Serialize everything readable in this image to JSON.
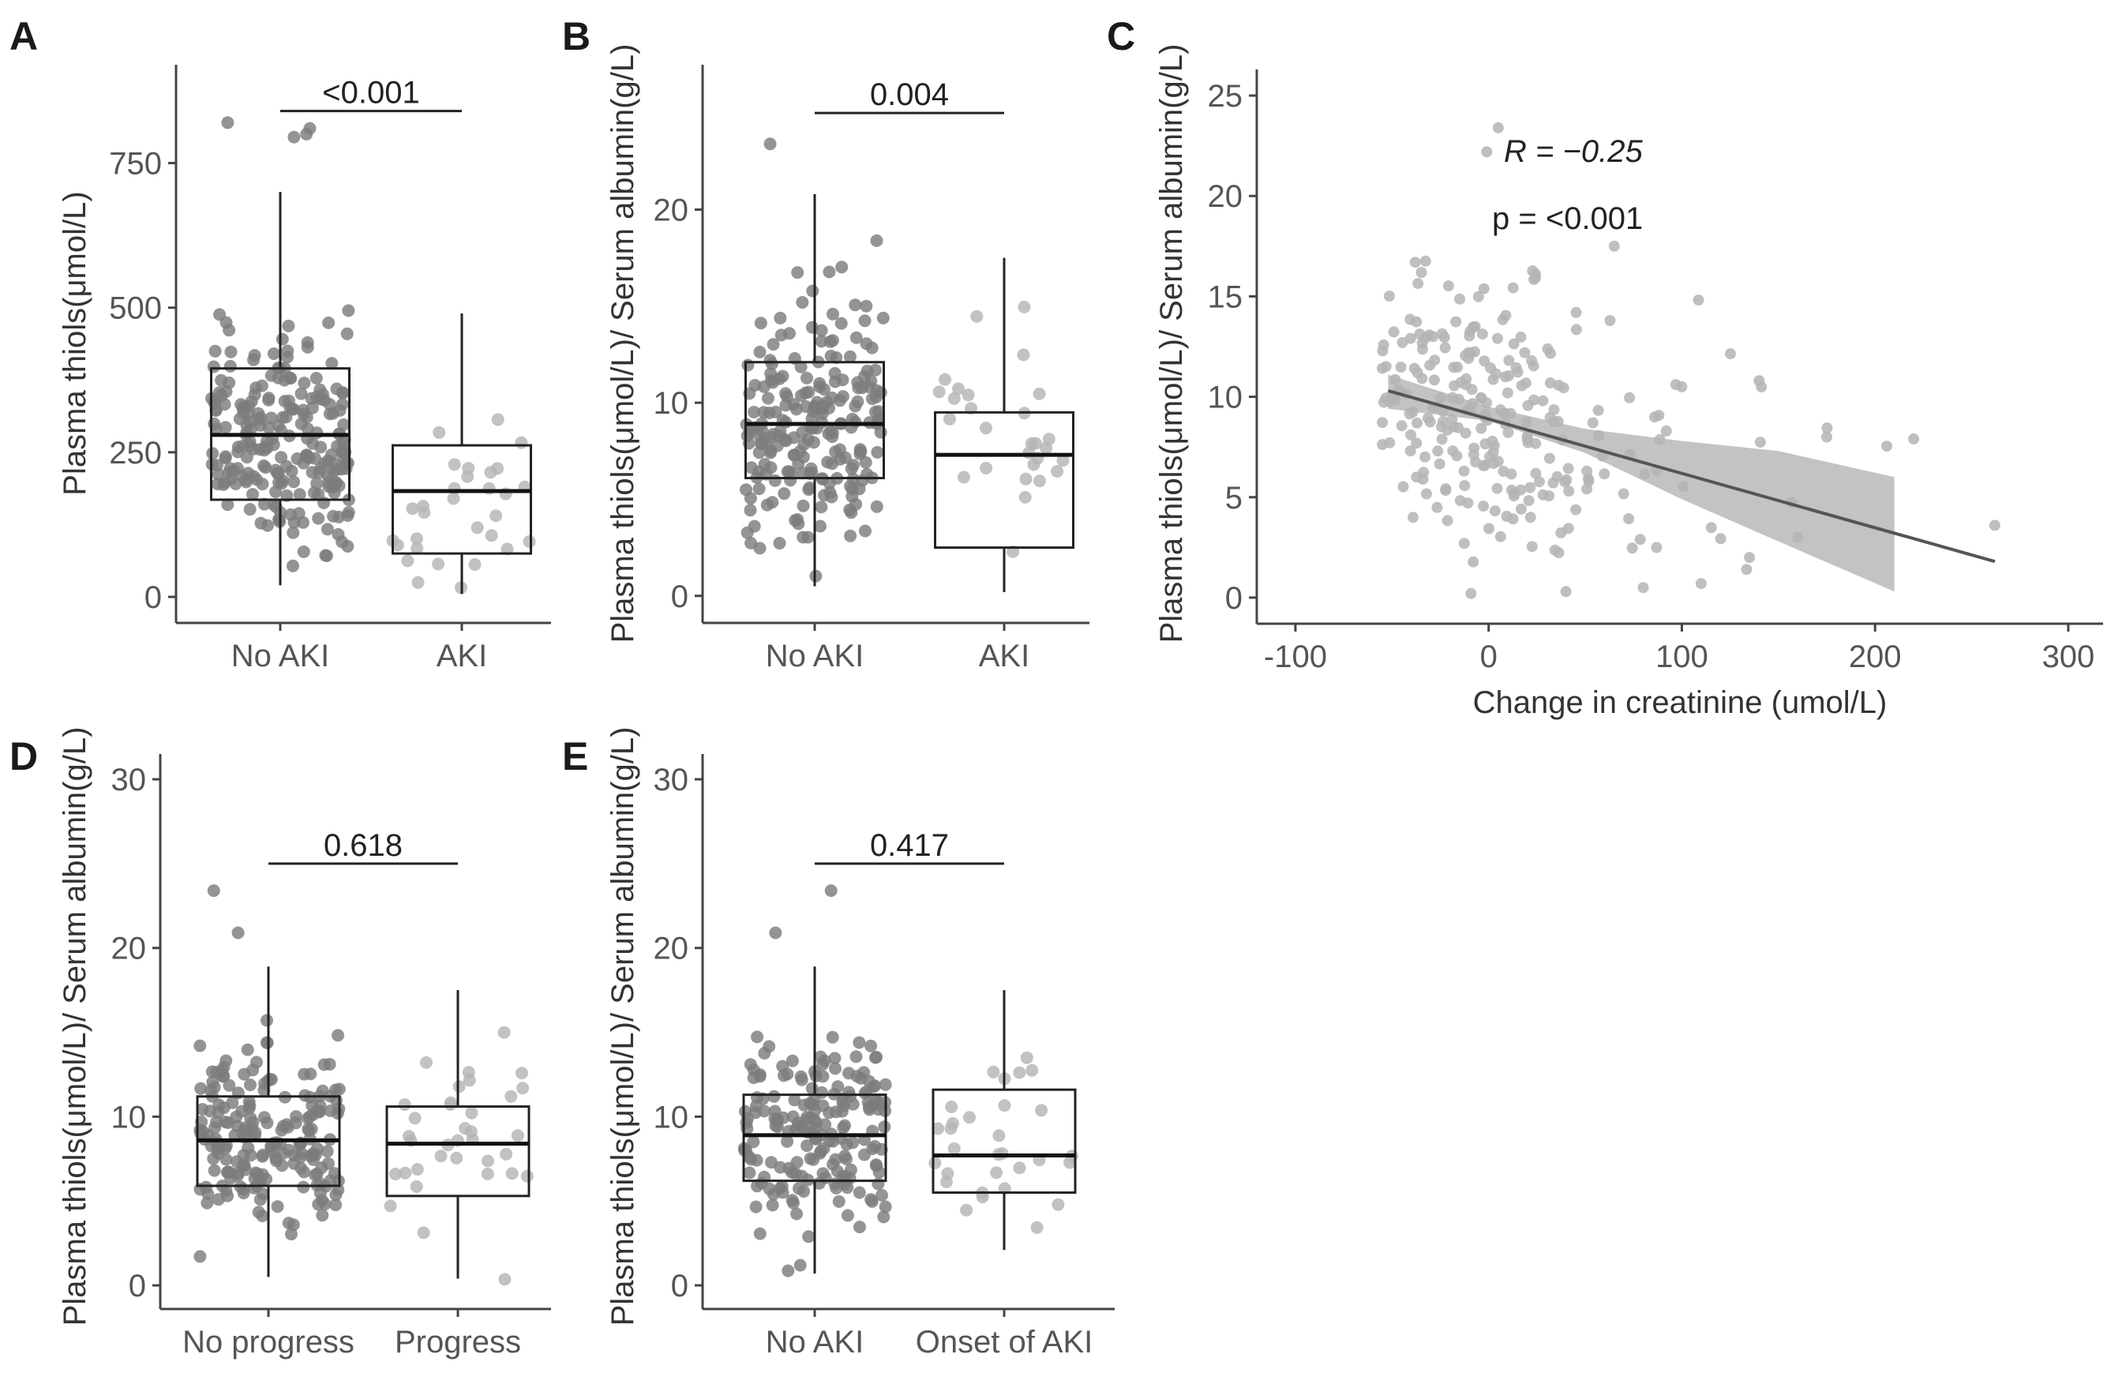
{
  "colors": {
    "point_dark": "#7d7d7d",
    "point_light": "#b4b4b4",
    "box_stroke": "#222222",
    "ribbon": "#bdbdbd",
    "fit_line": "#555555"
  },
  "chart_data": [
    {
      "panel": "A",
      "type": "box",
      "ylabel": "Plasma thiols(μmol/L)",
      "categories": [
        "No AKI",
        "AKI"
      ],
      "yticks": [
        0,
        250,
        500,
        750
      ],
      "ylim": [
        -45,
        920
      ],
      "annotation": "<0.001",
      "annotation_y": 840,
      "boxes": [
        {
          "name": "No AKI",
          "min": 20,
          "q1": 168,
          "median": 280,
          "q3": 395,
          "max": 700,
          "n": 230,
          "seed": 11,
          "scale": 120,
          "lo": 5,
          "hi": 690,
          "outliers": [
            820,
            810,
            800,
            795
          ]
        },
        {
          "name": "AKI",
          "min": 5,
          "q1": 75,
          "median": 183,
          "q3": 262,
          "max": 490,
          "n": 30,
          "seed": 12,
          "scale": 110,
          "lo": 3,
          "hi": 485,
          "outliers": []
        }
      ]
    },
    {
      "panel": "B",
      "type": "box",
      "ylabel": "Plasma thiols(μmol/L)/ Serum albumin(g/L)",
      "categories": [
        "No AKI",
        "AKI"
      ],
      "yticks": [
        0,
        10,
        20
      ],
      "ylim": [
        -1.4,
        27.5
      ],
      "annotation": "0.004",
      "annotation_y": 25,
      "boxes": [
        {
          "name": "No AKI",
          "min": 0.5,
          "q1": 6.1,
          "median": 8.9,
          "q3": 12.1,
          "max": 20.8,
          "n": 220,
          "seed": 21,
          "scale": 4.2,
          "lo": 0.3,
          "hi": 20.5,
          "outliers": [
            23.4
          ]
        },
        {
          "name": "AKI",
          "min": 0.2,
          "q1": 2.5,
          "median": 7.3,
          "q3": 9.5,
          "max": 17.5,
          "n": 28,
          "seed": 22,
          "scale": 4.5,
          "lo": 0.2,
          "hi": 17.4,
          "outliers": []
        }
      ]
    },
    {
      "panel": "C",
      "type": "scatter",
      "xlabel": "Change in creatinine (umol/L)",
      "ylabel": "Plasma thiols(μmol/L)/ Serum albumin(g/L)",
      "xticks": [
        -100,
        0,
        100,
        200,
        300
      ],
      "yticks": [
        0,
        5,
        10,
        15,
        20,
        25
      ],
      "xlim": [
        -120,
        318
      ],
      "ylim": [
        -1.3,
        26.3
      ],
      "annotation_r": "R = −0.25",
      "annotation_p": "p =  <0.001",
      "fit": {
        "x0": -52,
        "y0": 10.3,
        "x1": 262,
        "y1": 1.8
      },
      "ribbon": [
        [
          -52,
          11.1,
          9.4
        ],
        [
          0,
          9.5,
          8.8
        ],
        [
          50,
          8.4,
          7.2
        ],
        [
          100,
          7.8,
          4.9
        ],
        [
          150,
          7.3,
          2.8
        ],
        [
          210,
          6.0,
          0.3
        ]
      ],
      "n": 250,
      "seed": 31,
      "extra_points": [
        [
          5,
          23.4
        ],
        [
          -1,
          22.2
        ],
        [
          65,
          17.5
        ],
        [
          220,
          7.9
        ],
        [
          262,
          3.6
        ],
        [
          -38,
          16.7
        ],
        [
          140,
          10.8
        ],
        [
          80,
          0.5
        ],
        [
          110,
          0.7
        ],
        [
          40,
          0.3
        ],
        [
          175,
          8.0
        ],
        [
          135,
          2.0
        ],
        [
          160,
          3.0
        ],
        [
          100,
          10.5
        ]
      ]
    },
    {
      "panel": "D",
      "type": "box",
      "ylabel": "Plasma thiols(μmol/L)/ Serum albumin(g/L)",
      "categories": [
        "No progress",
        "Progress"
      ],
      "yticks": [
        0,
        10,
        20,
        30
      ],
      "ylim": [
        -1.4,
        31.5
      ],
      "annotation": "0.618",
      "annotation_y": 25,
      "boxes": [
        {
          "name": "No progress",
          "min": 0.5,
          "q1": 5.9,
          "median": 8.6,
          "q3": 11.2,
          "max": 18.9,
          "n": 200,
          "seed": 41,
          "scale": 3.6,
          "lo": 0.4,
          "hi": 18.8,
          "outliers": [
            23.4,
            20.9
          ]
        },
        {
          "name": "Progress",
          "min": 0.4,
          "q1": 5.3,
          "median": 8.4,
          "q3": 10.6,
          "max": 17.5,
          "n": 35,
          "seed": 42,
          "scale": 4,
          "lo": 0.3,
          "hi": 17.3,
          "outliers": []
        }
      ]
    },
    {
      "panel": "E",
      "type": "box",
      "ylabel": "Plasma thiols(μmol/L)/ Serum albumin(g/L)",
      "categories": [
        "No AKI",
        "Onset of AKI"
      ],
      "yticks": [
        0,
        10,
        20,
        30
      ],
      "ylim": [
        -1.4,
        31.5
      ],
      "annotation": "0.417",
      "annotation_y": 25,
      "boxes": [
        {
          "name": "No AKI",
          "min": 0.7,
          "q1": 6.2,
          "median": 8.9,
          "q3": 11.3,
          "max": 18.9,
          "n": 190,
          "seed": 51,
          "scale": 3.6,
          "lo": 0.5,
          "hi": 18.8,
          "outliers": [
            23.4,
            20.9
          ]
        },
        {
          "name": "Onset of AKI",
          "min": 2.1,
          "q1": 5.5,
          "median": 7.7,
          "q3": 11.6,
          "max": 17.5,
          "n": 30,
          "seed": 52,
          "scale": 4,
          "lo": 2.0,
          "hi": 17.4,
          "outliers": []
        }
      ]
    }
  ]
}
